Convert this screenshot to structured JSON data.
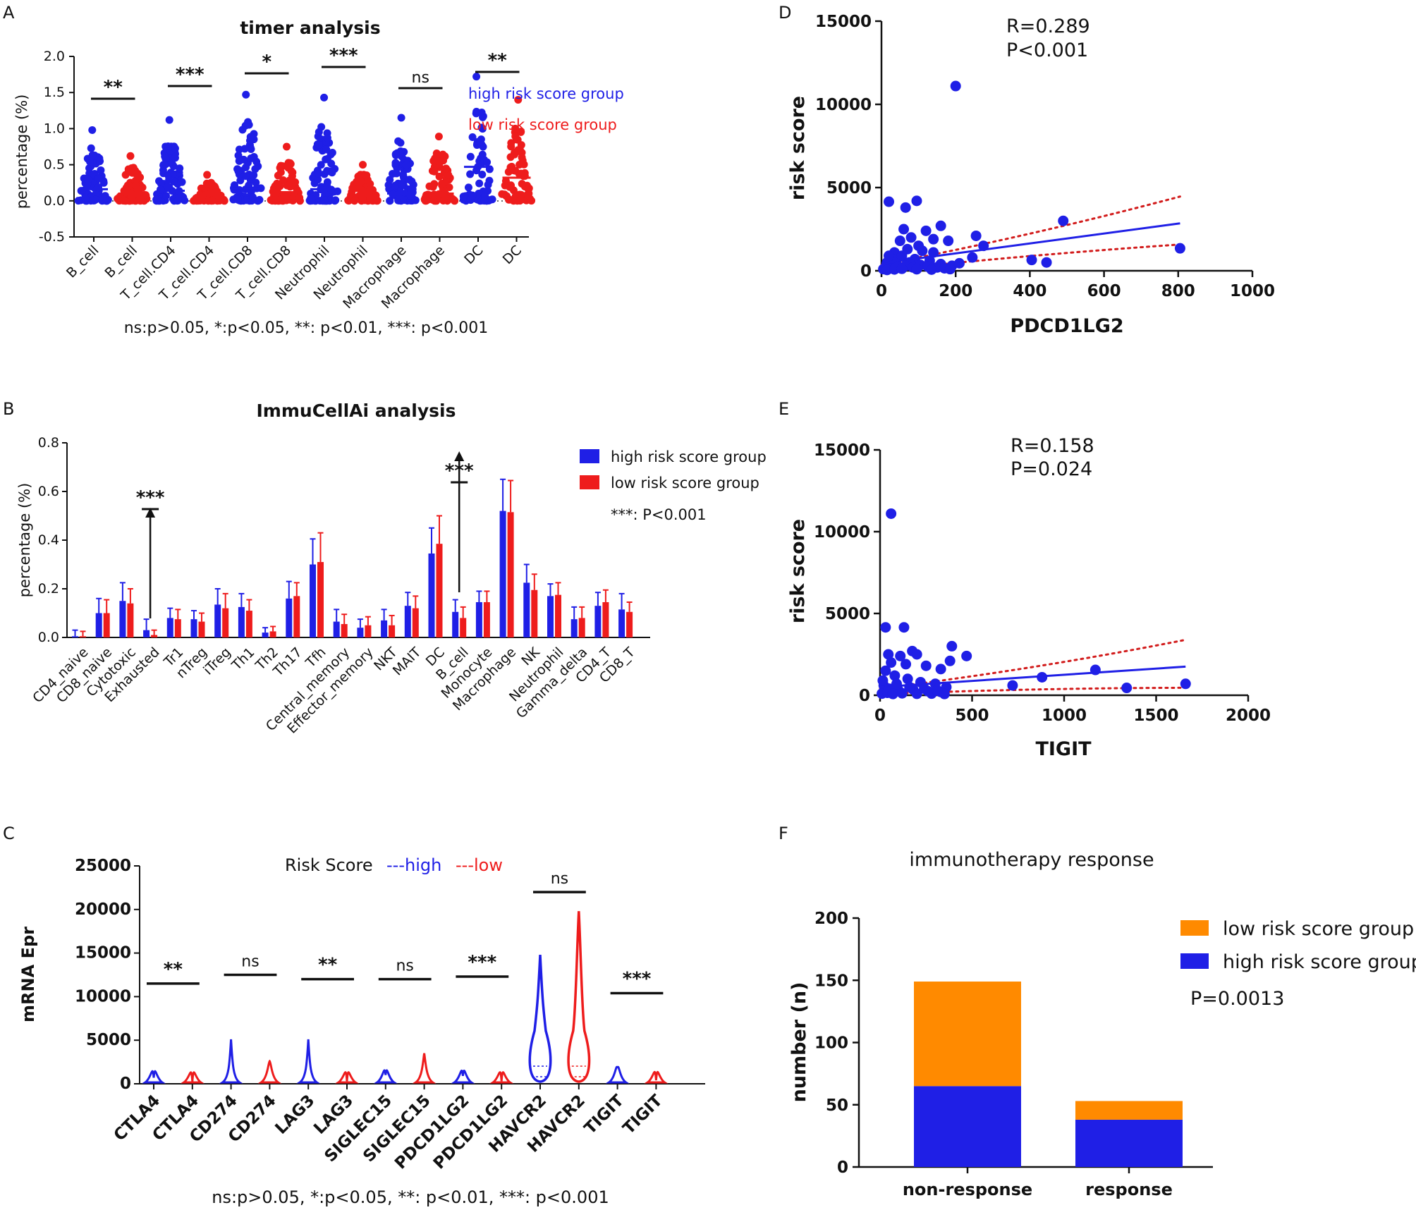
{
  "panels": {
    "A": "A",
    "B": "B",
    "C": "C",
    "D": "D",
    "E": "E",
    "F": "F"
  },
  "colors": {
    "high": "#1f1fe6",
    "low": "#ee1c1c",
    "orange": "#ff8a00",
    "black": "#111111",
    "trend_ci": "#d21c1c"
  },
  "footnote_ac": "ns:p>0.05, *:p<0.05, **: p<0.01, ***: p<0.001",
  "legend": {
    "high": "high risk score group",
    "low": "low risk score group"
  },
  "chart_data": [
    {
      "id": "A",
      "type": "scatter",
      "title": "timer analysis",
      "ylabel": "percentage (%)",
      "ylim": [
        -0.5,
        2.0
      ],
      "yticks": [
        "2.0",
        "1.5",
        "1.0",
        "0.5",
        "0.0",
        "-0.5"
      ],
      "categories": [
        "B_cell",
        "B_cell",
        "T_cell.CD4",
        "T_cell.CD4",
        "T_cell.CD8",
        "T_cell.CD8",
        "Neutrophil",
        "Neutrophil",
        "Macrophage",
        "Macrophage",
        "DC",
        "DC"
      ],
      "groups": [
        "high",
        "low",
        "high",
        "low",
        "high",
        "low",
        "high",
        "low",
        "high",
        "low",
        "high",
        "low"
      ],
      "medians": [
        0.16,
        0.1,
        0.14,
        0.08,
        0.17,
        0.12,
        0.16,
        0.08,
        0.1,
        0.1,
        0.47,
        0.32
      ],
      "maxima": [
        0.98,
        0.62,
        1.12,
        0.36,
        1.47,
        0.75,
        1.43,
        0.5,
        1.15,
        0.89,
        1.72,
        1.4
      ],
      "significance": [
        "**",
        "***",
        "*",
        "***",
        "ns",
        "**"
      ],
      "footnote": "ns:p>0.05, *:p<0.05, **: p<0.01, ***: p<0.001"
    },
    {
      "id": "B",
      "type": "bar",
      "title": "ImmuCellAi analysis",
      "ylabel": "percentage (%)",
      "ylim": [
        0,
        0.8
      ],
      "yticks": [
        "0.8",
        "0.6",
        "0.4",
        "0.2",
        "0.0"
      ],
      "categories": [
        "CD4_naive",
        "CD8_naive",
        "Cytotoxic",
        "Exhausted",
        "Tr1",
        "nTreg",
        "iTreg",
        "Th1",
        "Th2",
        "Th17",
        "Tfh",
        "Central_memory",
        "Effector_memory",
        "NKT",
        "MAIT",
        "DC",
        "B_cell",
        "Monocyte",
        "Macrophage",
        "NK",
        "Neutrophil",
        "Gamma_delta",
        "CD4_T",
        "CD8_T"
      ],
      "series": [
        {
          "name": "high risk score group",
          "values": [
            0.005,
            0.1,
            0.15,
            0.03,
            0.08,
            0.075,
            0.135,
            0.125,
            0.02,
            0.16,
            0.3,
            0.065,
            0.04,
            0.07,
            0.13,
            0.345,
            0.105,
            0.145,
            0.52,
            0.225,
            0.17,
            0.075,
            0.13,
            0.115
          ],
          "errors": [
            0.025,
            0.06,
            0.075,
            0.045,
            0.04,
            0.035,
            0.065,
            0.055,
            0.02,
            0.07,
            0.105,
            0.05,
            0.035,
            0.045,
            0.055,
            0.105,
            0.05,
            0.045,
            0.13,
            0.075,
            0.05,
            0.05,
            0.055,
            0.065
          ]
        },
        {
          "name": "low risk score group",
          "values": [
            0.005,
            0.1,
            0.14,
            0.01,
            0.075,
            0.065,
            0.12,
            0.11,
            0.025,
            0.17,
            0.31,
            0.055,
            0.05,
            0.05,
            0.12,
            0.385,
            0.08,
            0.145,
            0.515,
            0.195,
            0.175,
            0.08,
            0.145,
            0.105
          ],
          "errors": [
            0.02,
            0.055,
            0.06,
            0.02,
            0.04,
            0.035,
            0.06,
            0.045,
            0.02,
            0.055,
            0.12,
            0.04,
            0.035,
            0.04,
            0.05,
            0.115,
            0.045,
            0.045,
            0.13,
            0.065,
            0.05,
            0.045,
            0.05,
            0.04
          ]
        }
      ],
      "annotations": [
        {
          "label": "***",
          "category": "Exhausted"
        },
        {
          "label": "***",
          "category": "B_cell"
        }
      ],
      "legend_note": "***:  P<0.001"
    },
    {
      "id": "C",
      "type": "violin",
      "title": "Risk Score",
      "legend_high": "---high",
      "legend_low": "---low",
      "ylabel": "mRNA Epr",
      "ylim": [
        0,
        25000
      ],
      "yticks": [
        "25000",
        "20000",
        "15000",
        "10000",
        "5000",
        "0"
      ],
      "categories": [
        "CTLA4",
        "CTLA4",
        "CD274",
        "CD274",
        "LAG3",
        "LAG3",
        "SIGLEC15",
        "SIGLEC15",
        "PDCD1LG2",
        "PDCD1LG2",
        "HAVCR2",
        "HAVCR2",
        "TIGIT",
        "TIGIT"
      ],
      "groups": [
        "high",
        "low",
        "high",
        "low",
        "high",
        "low",
        "high",
        "low",
        "high",
        "low",
        "high",
        "low",
        "high",
        "low"
      ],
      "maxima": [
        700,
        250,
        5100,
        2600,
        5100,
        300,
        1000,
        3500,
        900,
        300,
        14800,
        19800,
        1800,
        400
      ],
      "significance": [
        "**",
        "ns",
        "**",
        "ns",
        "***",
        "ns",
        "***"
      ],
      "sig_levels": [
        11500,
        12500,
        12000,
        12000,
        12300,
        22000,
        10400
      ],
      "footnote": "ns:p>0.05, *:p<0.05, **: p<0.01, ***: p<0.001"
    },
    {
      "id": "D",
      "type": "scatter",
      "xlabel": "PDCD1LG2",
      "ylabel": "risk score",
      "xlim": [
        0,
        1000
      ],
      "ylim": [
        0,
        15000
      ],
      "xticks": [
        "0",
        "200",
        "400",
        "600",
        "800",
        "1000"
      ],
      "yticks": [
        "15000",
        "10000",
        "5000",
        "0"
      ],
      "stat_r": "R=0.289",
      "stat_p": "P<0.001",
      "fit": [
        [
          0,
          450
        ],
        [
          805,
          2850
        ]
      ],
      "points": [
        [
          200,
          11100
        ],
        [
          20,
          4150
        ],
        [
          95,
          4200
        ],
        [
          490,
          3000
        ],
        [
          805,
          1350
        ],
        [
          405,
          650
        ],
        [
          445,
          500
        ],
        [
          255,
          2100
        ],
        [
          275,
          1500
        ],
        [
          160,
          2700
        ],
        [
          60,
          2500
        ],
        [
          120,
          2400
        ],
        [
          140,
          1900
        ],
        [
          180,
          1800
        ],
        [
          245,
          800
        ],
        [
          50,
          1800
        ],
        [
          80,
          2000
        ],
        [
          100,
          1500
        ],
        [
          35,
          1100
        ],
        [
          70,
          1300
        ],
        [
          110,
          1200
        ],
        [
          30,
          700
        ],
        [
          55,
          900
        ],
        [
          90,
          700
        ],
        [
          15,
          500
        ],
        [
          40,
          400
        ],
        [
          75,
          500
        ],
        [
          130,
          600
        ],
        [
          160,
          400
        ],
        [
          190,
          300
        ],
        [
          210,
          450
        ],
        [
          10,
          200
        ],
        [
          25,
          150
        ],
        [
          45,
          250
        ],
        [
          65,
          300
        ],
        [
          85,
          200
        ],
        [
          105,
          350
        ],
        [
          125,
          250
        ],
        [
          150,
          200
        ],
        [
          170,
          150
        ],
        [
          5,
          100
        ],
        [
          15,
          50
        ],
        [
          35,
          80
        ],
        [
          55,
          120
        ],
        [
          95,
          90
        ],
        [
          135,
          70
        ],
        [
          185,
          100
        ],
        [
          20,
          900
        ],
        [
          140,
          1100
        ],
        [
          65,
          3800
        ]
      ]
    },
    {
      "id": "E",
      "type": "scatter",
      "xlabel": "TIGIT",
      "ylabel": "risk score",
      "xlim": [
        0,
        2000
      ],
      "ylim": [
        0,
        15000
      ],
      "xticks": [
        "0",
        "500",
        "1000",
        "1500",
        "2000"
      ],
      "yticks": [
        "15000",
        "10000",
        "5000",
        "0"
      ],
      "stat_r": "R=0.158",
      "stat_p": "P=0.024",
      "fit": [
        [
          0,
          500
        ],
        [
          1660,
          1750
        ]
      ],
      "points": [
        [
          60,
          11100
        ],
        [
          30,
          4150
        ],
        [
          130,
          4150
        ],
        [
          390,
          3000
        ],
        [
          470,
          2400
        ],
        [
          175,
          2700
        ],
        [
          200,
          2500
        ],
        [
          60,
          2000
        ],
        [
          110,
          2400
        ],
        [
          140,
          1900
        ],
        [
          250,
          1800
        ],
        [
          330,
          1600
        ],
        [
          380,
          2100
        ],
        [
          880,
          1100
        ],
        [
          1170,
          1550
        ],
        [
          1660,
          700
        ],
        [
          1340,
          450
        ],
        [
          720,
          600
        ],
        [
          30,
          1500
        ],
        [
          80,
          1200
        ],
        [
          150,
          1000
        ],
        [
          220,
          800
        ],
        [
          300,
          700
        ],
        [
          360,
          500
        ],
        [
          20,
          600
        ],
        [
          50,
          400
        ],
        [
          100,
          300
        ],
        [
          180,
          350
        ],
        [
          260,
          250
        ],
        [
          330,
          200
        ],
        [
          10,
          100
        ],
        [
          40,
          150
        ],
        [
          70,
          80
        ],
        [
          120,
          120
        ],
        [
          200,
          90
        ],
        [
          280,
          100
        ],
        [
          350,
          80
        ],
        [
          15,
          900
        ],
        [
          90,
          700
        ],
        [
          160,
          500
        ],
        [
          240,
          400
        ],
        [
          310,
          300
        ],
        [
          45,
          2500
        ]
      ]
    },
    {
      "id": "F",
      "type": "bar",
      "stacked": true,
      "title": "immunotherapy response",
      "ylabel": "number (n)",
      "ylim": [
        0,
        200
      ],
      "yticks": [
        "200",
        "150",
        "100",
        "50",
        "0"
      ],
      "categories": [
        "non-response",
        "response"
      ],
      "series": [
        {
          "name": "high risk score group",
          "values": [
            65,
            38
          ]
        },
        {
          "name": "low risk score group",
          "values": [
            84,
            15
          ]
        }
      ],
      "stat_p": "P=0.0013"
    }
  ]
}
